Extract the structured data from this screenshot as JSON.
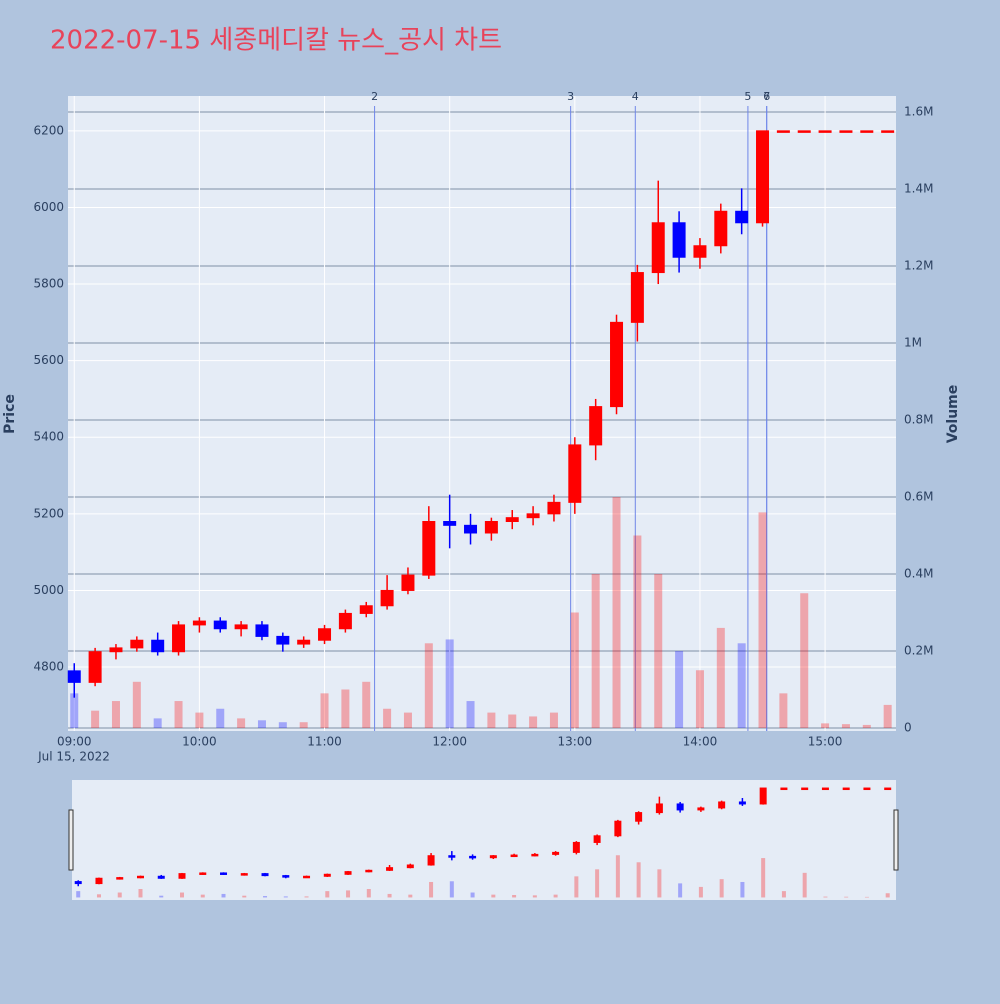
{
  "chart_data": {
    "type": "candlestick",
    "title": "2022-07-15 세종메디칼 뉴스_공시 차트",
    "x_date_label": "Jul 15, 2022",
    "y_label": "Price",
    "y2_label": "Volume",
    "up_color": "#ff0000",
    "down_color": "#0000ff",
    "grid": true,
    "rangeslider": true,
    "x": [
      "2022-07-15 09:00",
      "2022-07-15 09:10",
      "2022-07-15 09:20",
      "2022-07-15 09:30",
      "2022-07-15 09:40",
      "2022-07-15 09:50",
      "2022-07-15 10:00",
      "2022-07-15 10:10",
      "2022-07-15 10:20",
      "2022-07-15 10:30",
      "2022-07-15 10:40",
      "2022-07-15 10:50",
      "2022-07-15 11:00",
      "2022-07-15 11:10",
      "2022-07-15 11:20",
      "2022-07-15 11:30",
      "2022-07-15 11:40",
      "2022-07-15 11:50",
      "2022-07-15 12:00",
      "2022-07-15 12:10",
      "2022-07-15 12:20",
      "2022-07-15 12:30",
      "2022-07-15 12:40",
      "2022-07-15 12:50",
      "2022-07-15 13:00",
      "2022-07-15 13:10",
      "2022-07-15 13:20",
      "2022-07-15 13:30",
      "2022-07-15 13:40",
      "2022-07-15 13:50",
      "2022-07-15 14:00",
      "2022-07-15 14:10",
      "2022-07-15 14:20",
      "2022-07-15 14:30",
      "2022-07-15 14:40",
      "2022-07-15 14:50",
      "2022-07-15 15:00",
      "2022-07-15 15:10",
      "2022-07-15 15:20",
      "2022-07-15 15:30"
    ],
    "open": [
      4790,
      4760,
      4840,
      4850,
      4870,
      4840,
      4910,
      4920,
      4900,
      4910,
      4880,
      4860,
      4870,
      4900,
      4940,
      4960,
      5000,
      5040,
      5180,
      5170,
      5150,
      5180,
      5190,
      5200,
      5230,
      5380,
      5480,
      5700,
      5830,
      5960,
      5870,
      5900,
      5990,
      5960,
      6200,
      6200,
      6200,
      6200,
      6200,
      6200
    ],
    "high": [
      4810,
      4850,
      4860,
      4880,
      4890,
      4920,
      4930,
      4930,
      4920,
      4920,
      4890,
      4880,
      4910,
      4950,
      4970,
      5040,
      5060,
      5220,
      5250,
      5200,
      5190,
      5210,
      5220,
      5250,
      5400,
      5500,
      5720,
      5850,
      6070,
      5990,
      5920,
      6010,
      6050,
      6200,
      6200,
      6200,
      6200,
      6200,
      6200,
      6200
    ],
    "low": [
      4720,
      4750,
      4820,
      4840,
      4830,
      4830,
      4890,
      4890,
      4880,
      4870,
      4840,
      4850,
      4860,
      4890,
      4930,
      4950,
      4990,
      5030,
      5110,
      5120,
      5130,
      5160,
      5170,
      5180,
      5200,
      5340,
      5460,
      5650,
      5800,
      5830,
      5840,
      5880,
      5930,
      5950,
      6200,
      6200,
      6200,
      6200,
      6200,
      6200
    ],
    "close": [
      4760,
      4840,
      4850,
      4870,
      4840,
      4910,
      4920,
      4900,
      4910,
      4880,
      4860,
      4870,
      4900,
      4940,
      4960,
      5000,
      5040,
      5180,
      5170,
      5150,
      5180,
      5190,
      5200,
      5230,
      5380,
      5480,
      5700,
      5830,
      5960,
      5870,
      5900,
      5990,
      5960,
      6200,
      6200,
      6200,
      6200,
      6200,
      6200,
      6200
    ],
    "volume": [
      90000,
      45000,
      70000,
      120000,
      25000,
      70000,
      40000,
      50000,
      25000,
      20000,
      15000,
      15000,
      90000,
      100000,
      120000,
      50000,
      40000,
      220000,
      230000,
      70000,
      40000,
      35000,
      30000,
      40000,
      300000,
      400000,
      600000,
      500000,
      400000,
      200000,
      150000,
      260000,
      220000,
      560000,
      90000,
      350000,
      12000,
      10000,
      8000,
      60000
    ],
    "events": [
      {
        "x": "2022-07-15 11:24",
        "label": "2"
      },
      {
        "x": "2022-07-15 12:58",
        "label": "3"
      },
      {
        "x": "2022-07-15 13:29",
        "label": "4"
      },
      {
        "x": "2022-07-15 14:23",
        "label": "5"
      },
      {
        "x": "2022-07-15 14:32",
        "label": "6"
      },
      {
        "x": "2022-07-15 14:32",
        "label": "7"
      }
    ],
    "xlim": [
      "2022-07-15 08:57",
      "2022-07-15 15:34"
    ],
    "xticks": [
      {
        "value": "2022-07-15 09:00",
        "label": "09:00"
      },
      {
        "value": "2022-07-15 10:00",
        "label": "10:00"
      },
      {
        "value": "2022-07-15 11:00",
        "label": "11:00"
      },
      {
        "value": "2022-07-15 12:00",
        "label": "12:00"
      },
      {
        "value": "2022-07-15 13:00",
        "label": "13:00"
      },
      {
        "value": "2022-07-15 14:00",
        "label": "14:00"
      },
      {
        "value": "2022-07-15 15:00",
        "label": "15:00"
      }
    ],
    "ylim": [
      4633,
      6291
    ],
    "yticks": [
      4800,
      5000,
      5200,
      5400,
      5600,
      5800,
      6000,
      6200
    ],
    "y2lim": [
      -7800,
      1641600
    ],
    "y2ticks": [
      0,
      {
        "value": 200000,
        "label": "0.2M"
      },
      {
        "value": 400000,
        "label": "0.4M"
      },
      {
        "value": 600000,
        "label": "0.6M"
      },
      {
        "value": 800000,
        "label": "0.8M"
      },
      {
        "value": 1000000,
        "label": "1M"
      },
      {
        "value": 1200000,
        "label": "1.2M"
      },
      {
        "value": 1400000,
        "label": "1.4M"
      },
      {
        "value": 1600000,
        "label": "1.6M"
      }
    ]
  }
}
